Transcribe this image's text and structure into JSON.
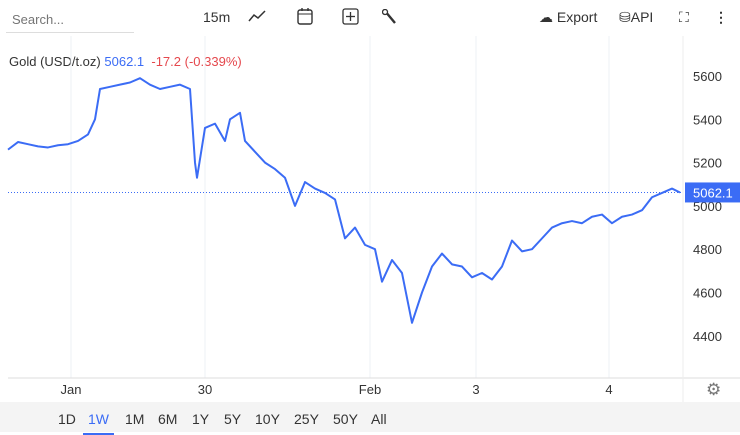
{
  "toolbar": {
    "search_placeholder": "Search...",
    "interval": "15m",
    "export": "Export",
    "api": "API"
  },
  "legend": {
    "name": "Gold (USD/t.oz)",
    "price": "5062.1",
    "change": "-17.2",
    "change_pct": "(-0.339%)"
  },
  "ranges": [
    "1D",
    "1W",
    "1M",
    "6M",
    "1Y",
    "5Y",
    "10Y",
    "25Y",
    "50Y",
    "All"
  ],
  "active_range": "1W",
  "colors": {
    "line": "#3b6cf5",
    "down": "#e5484d",
    "grid": "#eef0f5"
  },
  "chart_data": {
    "type": "line",
    "title": "Gold (USD/t.oz)",
    "ylim": [
      4250,
      5700
    ],
    "yticks": [
      4400,
      4600,
      4800,
      5000,
      5200,
      5400,
      5600
    ],
    "xticks": [
      {
        "label": "Jan",
        "x": 6.3
      },
      {
        "label": "30",
        "x": 19.7
      },
      {
        "label": "Feb",
        "x": 36.2
      },
      {
        "label": "3",
        "x": 46.8
      },
      {
        "label": "4",
        "x": 60.1
      }
    ],
    "xlim": [
      0,
      67.5
    ],
    "last_value": 5062.1,
    "grid": true,
    "points": [
      [
        0,
        5260
      ],
      [
        1,
        5295
      ],
      [
        2,
        5285
      ],
      [
        3,
        5275
      ],
      [
        4,
        5270
      ],
      [
        5,
        5280
      ],
      [
        6,
        5285
      ],
      [
        7,
        5300
      ],
      [
        8,
        5330
      ],
      [
        8.7,
        5400
      ],
      [
        9.2,
        5540
      ],
      [
        10.2,
        5550
      ],
      [
        11.2,
        5560
      ],
      [
        12.2,
        5570
      ],
      [
        13.2,
        5590
      ],
      [
        14.2,
        5560
      ],
      [
        15.2,
        5540
      ],
      [
        16.2,
        5550
      ],
      [
        17.2,
        5560
      ],
      [
        18.2,
        5540
      ],
      [
        18.7,
        5200
      ],
      [
        18.9,
        5130
      ],
      [
        19.7,
        5360
      ],
      [
        20.7,
        5380
      ],
      [
        21.7,
        5300
      ],
      [
        22.2,
        5400
      ],
      [
        23.2,
        5430
      ],
      [
        23.7,
        5300
      ],
      [
        24.7,
        5250
      ],
      [
        25.7,
        5200
      ],
      [
        26.7,
        5170
      ],
      [
        27.7,
        5130
      ],
      [
        28.7,
        5000
      ],
      [
        29.7,
        5110
      ],
      [
        30.7,
        5080
      ],
      [
        31.7,
        5060
      ],
      [
        32.7,
        5030
      ],
      [
        33.7,
        4850
      ],
      [
        34.7,
        4900
      ],
      [
        35.7,
        4820
      ],
      [
        36.7,
        4800
      ],
      [
        37.4,
        4650
      ],
      [
        38.4,
        4750
      ],
      [
        39.4,
        4690
      ],
      [
        40.4,
        4460
      ],
      [
        41.4,
        4600
      ],
      [
        42.4,
        4720
      ],
      [
        43.4,
        4780
      ],
      [
        44.4,
        4730
      ],
      [
        45.4,
        4720
      ],
      [
        46.4,
        4670
      ],
      [
        47.4,
        4690
      ],
      [
        48.4,
        4660
      ],
      [
        49.4,
        4720
      ],
      [
        50.4,
        4840
      ],
      [
        51.4,
        4790
      ],
      [
        52.4,
        4800
      ],
      [
        53.4,
        4850
      ],
      [
        54.4,
        4900
      ],
      [
        55.4,
        4920
      ],
      [
        56.4,
        4930
      ],
      [
        57.4,
        4920
      ],
      [
        58.4,
        4950
      ],
      [
        59.4,
        4960
      ],
      [
        60.4,
        4920
      ],
      [
        61.4,
        4950
      ],
      [
        62.4,
        4960
      ],
      [
        63.4,
        4980
      ],
      [
        64.4,
        5040
      ],
      [
        65.4,
        5060
      ],
      [
        66.4,
        5080
      ],
      [
        67.2,
        5062
      ]
    ]
  }
}
